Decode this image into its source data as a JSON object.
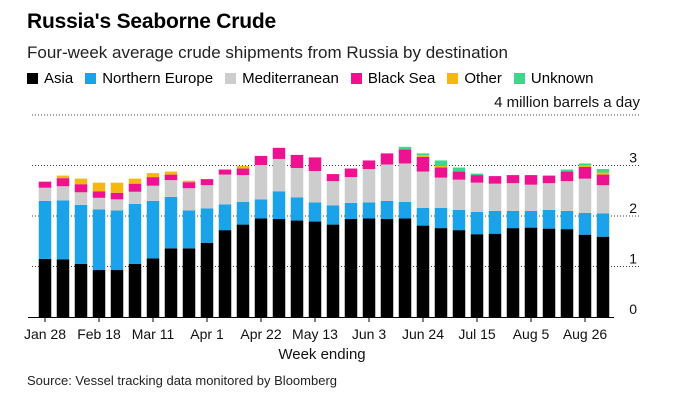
{
  "chart_data": {
    "type": "bar",
    "stacked": true,
    "title": "Russia's Seaborne Crude",
    "subtitle": "Four-week average crude shipments from Russia by destination",
    "unit_label": "4 million barrels a day",
    "xlabel": "Week ending",
    "source": "Source: Vessel tracking data monitored by Bloomberg",
    "ylim": [
      0,
      4
    ],
    "yticks": [
      {
        "value": 0,
        "label": "0"
      },
      {
        "value": 1,
        "label": "1"
      },
      {
        "value": 2,
        "label": "2"
      },
      {
        "value": 3,
        "label": "3"
      }
    ],
    "xtick_labels": [
      {
        "index": 0,
        "label": "Jan 28"
      },
      {
        "index": 3,
        "label": "Feb 18"
      },
      {
        "index": 6,
        "label": "Mar 11"
      },
      {
        "index": 9,
        "label": "Apr 1"
      },
      {
        "index": 12,
        "label": "Apr 22"
      },
      {
        "index": 15,
        "label": "May 13"
      },
      {
        "index": 18,
        "label": "Jun 3"
      },
      {
        "index": 21,
        "label": "Jun 24"
      },
      {
        "index": 24,
        "label": "Jul 15"
      },
      {
        "index": 27,
        "label": "Aug 5"
      },
      {
        "index": 30,
        "label": "Aug 26"
      }
    ],
    "series": [
      {
        "name": "Asia",
        "color": "#000000",
        "values": [
          1.15,
          1.14,
          1.05,
          0.93,
          0.93,
          1.05,
          1.16,
          1.36,
          1.36,
          1.47,
          1.72,
          1.83,
          1.95,
          1.94,
          1.91,
          1.89,
          1.83,
          1.94,
          1.95,
          1.94,
          1.95,
          1.81,
          1.76,
          1.72,
          1.64,
          1.65,
          1.76,
          1.77,
          1.75,
          1.74,
          1.63,
          1.59
        ]
      },
      {
        "name": "Northern Europe",
        "color": "#1aa3e8",
        "values": [
          1.15,
          1.17,
          1.17,
          1.2,
          1.18,
          1.19,
          1.14,
          1.02,
          0.75,
          0.68,
          0.51,
          0.45,
          0.38,
          0.55,
          0.46,
          0.38,
          0.38,
          0.32,
          0.32,
          0.36,
          0.33,
          0.35,
          0.4,
          0.4,
          0.44,
          0.45,
          0.34,
          0.33,
          0.37,
          0.36,
          0.43,
          0.46
        ]
      },
      {
        "name": "Mediterranean",
        "color": "#cdcdcd",
        "values": [
          0.26,
          0.28,
          0.25,
          0.23,
          0.22,
          0.24,
          0.3,
          0.33,
          0.44,
          0.46,
          0.59,
          0.53,
          0.68,
          0.64,
          0.58,
          0.62,
          0.48,
          0.51,
          0.66,
          0.72,
          0.76,
          0.72,
          0.6,
          0.6,
          0.58,
          0.54,
          0.55,
          0.52,
          0.53,
          0.59,
          0.68,
          0.56
        ]
      },
      {
        "name": "Black Sea",
        "color": "#ee1190",
        "values": [
          0.12,
          0.16,
          0.16,
          0.13,
          0.13,
          0.16,
          0.17,
          0.11,
          0.12,
          0.12,
          0.1,
          0.13,
          0.18,
          0.22,
          0.26,
          0.27,
          0.14,
          0.17,
          0.17,
          0.22,
          0.28,
          0.29,
          0.2,
          0.16,
          0.15,
          0.15,
          0.16,
          0.19,
          0.15,
          0.19,
          0.23,
          0.21
        ]
      },
      {
        "name": "Other",
        "color": "#f5b811",
        "values": [
          0,
          0.05,
          0.11,
          0.17,
          0.2,
          0.1,
          0.08,
          0.06,
          0.03,
          0.0,
          0.0,
          0.05,
          0.0,
          0.0,
          0.0,
          0.0,
          0.0,
          0.0,
          0.0,
          0.0,
          0.0,
          0.03,
          0.03,
          0.0,
          0.0,
          0.0,
          0.0,
          0.0,
          0.0,
          0.0,
          0.04,
          0.04
        ]
      },
      {
        "name": "Unknown",
        "color": "#3fd68a",
        "values": [
          0,
          0,
          0,
          0,
          0,
          0,
          0,
          0,
          0,
          0,
          0,
          0,
          0,
          0,
          0,
          0,
          0,
          0,
          0,
          0,
          0.05,
          0.04,
          0.11,
          0.08,
          0.03,
          0.0,
          0.0,
          0.0,
          0.0,
          0.04,
          0.03,
          0.07
        ]
      }
    ]
  }
}
